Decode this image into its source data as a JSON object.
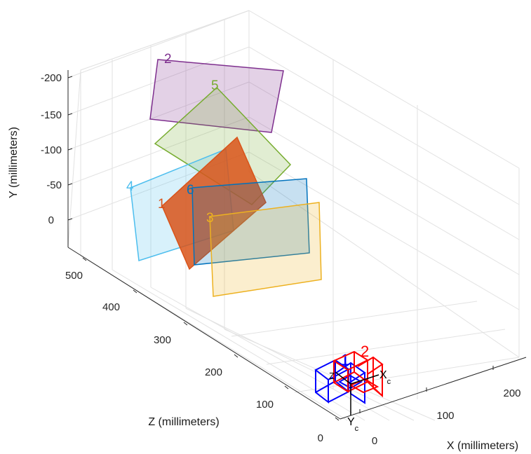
{
  "chart_data": {
    "type": "3d-extrinsics",
    "xlabel": "X (millimeters)",
    "ylabel": "Y (millimeters)",
    "zlabel": "Z (millimeters)",
    "x_ticks": [
      "0",
      "100",
      "200"
    ],
    "y_ticks": [
      "-200",
      "-150",
      "-100",
      "-50",
      "0"
    ],
    "z_ticks": [
      "0",
      "100",
      "200",
      "300",
      "400",
      "500"
    ],
    "grid": true,
    "boards": [
      {
        "id": "2",
        "color": "#7E2F8E"
      },
      {
        "id": "5",
        "color": "#77AC30"
      },
      {
        "id": "4",
        "color": "#4DBEEE"
      },
      {
        "id": "1",
        "color": "#D95319"
      },
      {
        "id": "6",
        "color": "#0072BD"
      },
      {
        "id": "3",
        "color": "#EDB120"
      }
    ],
    "cameras": [
      {
        "id": "1",
        "color": "#0000FF"
      },
      {
        "id": "2",
        "color": "#FF0000"
      }
    ],
    "camera_axes": {
      "x": "X",
      "y": "Y",
      "z": "Z",
      "sub": "c"
    }
  }
}
